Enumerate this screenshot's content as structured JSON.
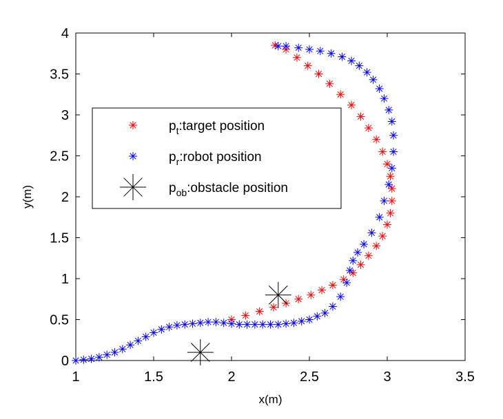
{
  "chart_data": {
    "type": "scatter",
    "title": "",
    "xlabel": "x(m)",
    "ylabel": "y(m)",
    "xlim": [
      1,
      3.5
    ],
    "ylim": [
      0,
      4
    ],
    "xticks": [
      "1",
      "1.5",
      "2",
      "2.5",
      "3",
      "3.5"
    ],
    "yticks": [
      "0",
      "0.5",
      "1",
      "1.5",
      "2",
      "2.5",
      "3",
      "3.5",
      "4"
    ],
    "grid": false,
    "legend_position": "upper-left",
    "legend": [
      {
        "base": "p",
        "sub": "t",
        "text": ":target position",
        "series": "target"
      },
      {
        "base": "p",
        "sub": "r",
        "text": ":robot position",
        "series": "robot"
      },
      {
        "base": "p",
        "sub": "ob",
        "text": ":obstacle position",
        "series": "obstacle"
      }
    ],
    "series": [
      {
        "key": "target",
        "color": "#ff0000",
        "marker": "asterisk-small",
        "x": [
          2.28,
          2.35,
          2.42,
          2.49,
          2.56,
          2.63,
          2.7,
          2.77,
          2.83,
          2.88,
          2.93,
          2.97,
          3.0,
          3.02,
          3.03,
          3.03,
          3.02,
          3.0,
          2.97,
          2.93,
          2.88,
          2.83,
          2.78,
          2.72,
          2.65,
          2.58,
          2.51,
          2.43,
          2.35,
          2.27,
          2.18,
          2.09,
          2.0
        ],
        "y": [
          3.85,
          3.8,
          3.7,
          3.6,
          3.5,
          3.38,
          3.25,
          3.12,
          2.98,
          2.84,
          2.7,
          2.55,
          2.4,
          2.25,
          2.1,
          1.95,
          1.8,
          1.66,
          1.52,
          1.4,
          1.28,
          1.17,
          1.07,
          0.99,
          0.92,
          0.86,
          0.8,
          0.75,
          0.7,
          0.65,
          0.6,
          0.55,
          0.5
        ]
      },
      {
        "key": "robot",
        "color": "#0000ff",
        "marker": "asterisk-small",
        "x": [
          1.0,
          1.05,
          1.1,
          1.15,
          1.2,
          1.25,
          1.3,
          1.35,
          1.4,
          1.45,
          1.5,
          1.55,
          1.6,
          1.65,
          1.7,
          1.75,
          1.8,
          1.85,
          1.9,
          1.95,
          2.0,
          2.05,
          2.1,
          2.15,
          2.2,
          2.25,
          2.3,
          2.35,
          2.4,
          2.45,
          2.5,
          2.55,
          2.6,
          2.65,
          2.7,
          2.74,
          2.76,
          2.78,
          2.81,
          2.85,
          2.9,
          2.95,
          2.98,
          3.01,
          3.03,
          3.04,
          3.04,
          3.03,
          3.01,
          2.98,
          2.95,
          2.91,
          2.87,
          2.82,
          2.77,
          2.71,
          2.64,
          2.57,
          2.5,
          2.43,
          2.35,
          2.3
        ],
        "y": [
          0.0,
          0.01,
          0.02,
          0.04,
          0.07,
          0.1,
          0.14,
          0.19,
          0.24,
          0.29,
          0.34,
          0.38,
          0.41,
          0.43,
          0.44,
          0.45,
          0.46,
          0.47,
          0.47,
          0.46,
          0.45,
          0.44,
          0.44,
          0.44,
          0.44,
          0.44,
          0.44,
          0.45,
          0.46,
          0.48,
          0.5,
          0.54,
          0.58,
          0.66,
          0.78,
          0.95,
          1.1,
          1.22,
          1.32,
          1.42,
          1.56,
          1.75,
          1.95,
          2.15,
          2.35,
          2.55,
          2.75,
          2.92,
          3.06,
          3.2,
          3.32,
          3.43,
          3.52,
          3.6,
          3.66,
          3.71,
          3.75,
          3.78,
          3.8,
          3.82,
          3.84,
          3.84
        ]
      },
      {
        "key": "obstacle",
        "color": "#000000",
        "marker": "asterisk-large",
        "x": [
          1.8,
          2.3
        ],
        "y": [
          0.1,
          0.8
        ]
      }
    ]
  }
}
